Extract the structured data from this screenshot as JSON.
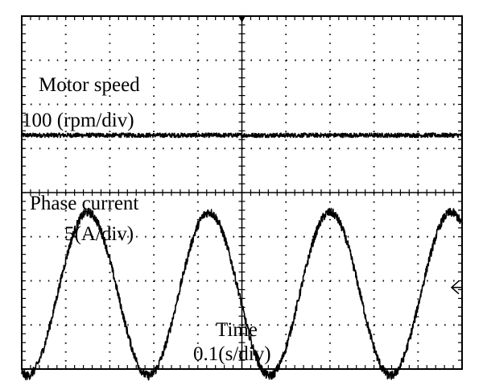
{
  "display": {
    "colors": {
      "background": "#ffffff",
      "trace": "#000000",
      "grid": "#000000"
    },
    "grid": {
      "horizontal_divisions": 10,
      "vertical_divisions": 8,
      "minor_ticks_per_division": 5
    },
    "top_marker": "trigger-position-marker",
    "right_marker": "channel-reference-arrow",
    "labels": {
      "ch1_title": "Motor speed",
      "ch1_scale": "100 (rpm/div)",
      "ch2_title": "Phase current",
      "ch2_scale": "5(A/div)",
      "time_title": "Time",
      "time_scale": "0.1(s/div)"
    }
  },
  "chart_data": {
    "type": "line",
    "x": {
      "unit": "div",
      "range": [
        0,
        10
      ],
      "scale": "0.1(s/div)"
    },
    "y": {
      "unit": "div",
      "range": [
        0,
        8
      ]
    },
    "series": [
      {
        "name": "Motor speed",
        "kind": "constant",
        "level_div": 5.3,
        "noise_div": 0.05
      },
      {
        "name": "Phase current",
        "kind": "sine",
        "offset_div": 1.7,
        "amplitude_div": 1.85,
        "period_div": 2.75,
        "first_peak_div": 1.5,
        "noise_div": 0.1
      }
    ]
  }
}
